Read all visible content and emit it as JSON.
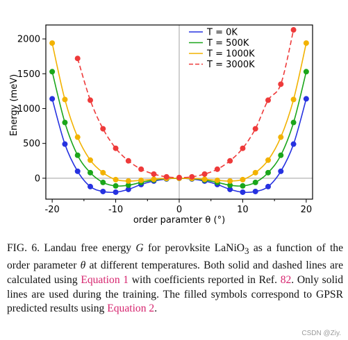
{
  "chart_data": {
    "type": "line",
    "xlabel": "order paramter θ (°)",
    "ylabel": "Energy (meV)",
    "xlim": [
      -21,
      21
    ],
    "ylim": [
      -300,
      2200
    ],
    "xticks": [
      -20,
      -10,
      0,
      10,
      20
    ],
    "yticks": [
      0,
      500,
      1000,
      1500,
      2000
    ],
    "grid": false,
    "legend_position": "top-right",
    "series": [
      {
        "name": "T = 0K",
        "color": "#2632e0",
        "style": "solid",
        "points": {
          "x": [
            -20,
            -18,
            -16,
            -14,
            -12,
            -10,
            -8,
            -6,
            -4,
            -2,
            0,
            2,
            4,
            6,
            8,
            10,
            12,
            14,
            16,
            18,
            20
          ],
          "y": [
            1140,
            490,
            100,
            -120,
            -190,
            -200,
            -160,
            -90,
            -40,
            -10,
            0,
            -10,
            -40,
            -90,
            -160,
            -200,
            -190,
            -120,
            100,
            490,
            1140
          ]
        }
      },
      {
        "name": "T = 500K",
        "color": "#1aa61a",
        "style": "solid",
        "points": {
          "x": [
            -20,
            -18,
            -16,
            -14,
            -12,
            -10,
            -8,
            -6,
            -4,
            -2,
            0,
            2,
            4,
            6,
            8,
            10,
            12,
            14,
            16,
            18,
            20
          ],
          "y": [
            1530,
            800,
            330,
            80,
            -60,
            -110,
            -100,
            -60,
            -25,
            -5,
            0,
            -5,
            -25,
            -60,
            -100,
            -110,
            -60,
            80,
            330,
            800,
            1530
          ]
        }
      },
      {
        "name": "T = 1000K",
        "color": "#f2b200",
        "style": "solid",
        "points": {
          "x": [
            -20,
            -18,
            -16,
            -14,
            -12,
            -10,
            -8,
            -6,
            -4,
            -2,
            0,
            2,
            4,
            6,
            8,
            10,
            12,
            14,
            16,
            18,
            20
          ],
          "y": [
            1940,
            1130,
            590,
            260,
            80,
            -20,
            -40,
            -30,
            -15,
            -3,
            0,
            -3,
            -15,
            -30,
            -40,
            -20,
            80,
            260,
            590,
            1130,
            1940
          ]
        }
      },
      {
        "name": "T = 3000K",
        "color": "#ee3a3a",
        "style": "dashed",
        "points": {
          "x": [
            -16,
            -14,
            -12,
            -10,
            -8,
            -6,
            -4,
            -2,
            0,
            2,
            4,
            6,
            8,
            10,
            12,
            14,
            16,
            18
          ],
          "y": [
            1720,
            1120,
            710,
            430,
            250,
            130,
            60,
            20,
            10,
            20,
            60,
            130,
            250,
            430,
            710,
            1120,
            1350,
            2130
          ]
        }
      }
    ]
  },
  "caption": {
    "p1": "FIG. 6.  Landau free energy ",
    "G": "G",
    "p2": " for perovksite LaNiO",
    "sub3": "3",
    "p3": " as a function of the order parameter ",
    "theta": "θ",
    "p4": " at different temperatures. Both solid and dashed lines are calculated using ",
    "eq1": "Equation 1",
    "p5": " with coefficients reported in Ref. ",
    "ref82": "82",
    "p6": ". Only solid lines are used during the training. The filled symbols correspond to GPSR predicted results using ",
    "eq2": "Equation 2",
    "p7": "."
  },
  "watermark": "CSDN @Ziy."
}
